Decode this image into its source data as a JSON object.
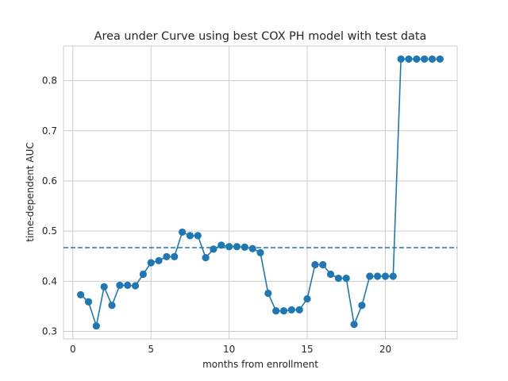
{
  "chart_data": {
    "type": "line",
    "title": "Area under Curve using best COX PH model with test data",
    "xlabel": "months from enrollment",
    "ylabel": "time-dependent AUC",
    "xlim": [
      -0.6,
      24.6
    ],
    "ylim": [
      0.285,
      0.869
    ],
    "xticks": [
      0,
      5,
      10,
      15,
      20
    ],
    "yticks": [
      0.3,
      0.4,
      0.5,
      0.6,
      0.7,
      0.8
    ],
    "grid": true,
    "series": [
      {
        "x": [
          0.5,
          1,
          1.5,
          2,
          2.5,
          3,
          3.5,
          4,
          4.5,
          5,
          5.5,
          6,
          6.5,
          7,
          7.5,
          8,
          8.5,
          9,
          9.5,
          10,
          10.5,
          11,
          11.5,
          12,
          12.5,
          13,
          13.5,
          14,
          14.5,
          15,
          15.5,
          16,
          16.5,
          17,
          17.5,
          18,
          18.5,
          19,
          19.5,
          20,
          20.5,
          21,
          21.5,
          22,
          22.5,
          23,
          23.5
        ],
        "y": [
          0.373,
          0.359,
          0.311,
          0.389,
          0.352,
          0.392,
          0.392,
          0.391,
          0.414,
          0.437,
          0.441,
          0.449,
          0.449,
          0.498,
          0.491,
          0.491,
          0.447,
          0.464,
          0.472,
          0.469,
          0.469,
          0.468,
          0.465,
          0.457,
          0.376,
          0.341,
          0.341,
          0.343,
          0.343,
          0.365,
          0.433,
          0.433,
          0.414,
          0.406,
          0.406,
          0.314,
          0.352,
          0.41,
          0.41,
          0.41,
          0.41,
          0.843,
          0.843,
          0.843,
          0.843,
          0.843,
          0.843
        ],
        "color": "#1f77b4"
      }
    ],
    "reference_line": {
      "y": 0.467,
      "style": "dashed",
      "color": "#1f77b4"
    }
  }
}
